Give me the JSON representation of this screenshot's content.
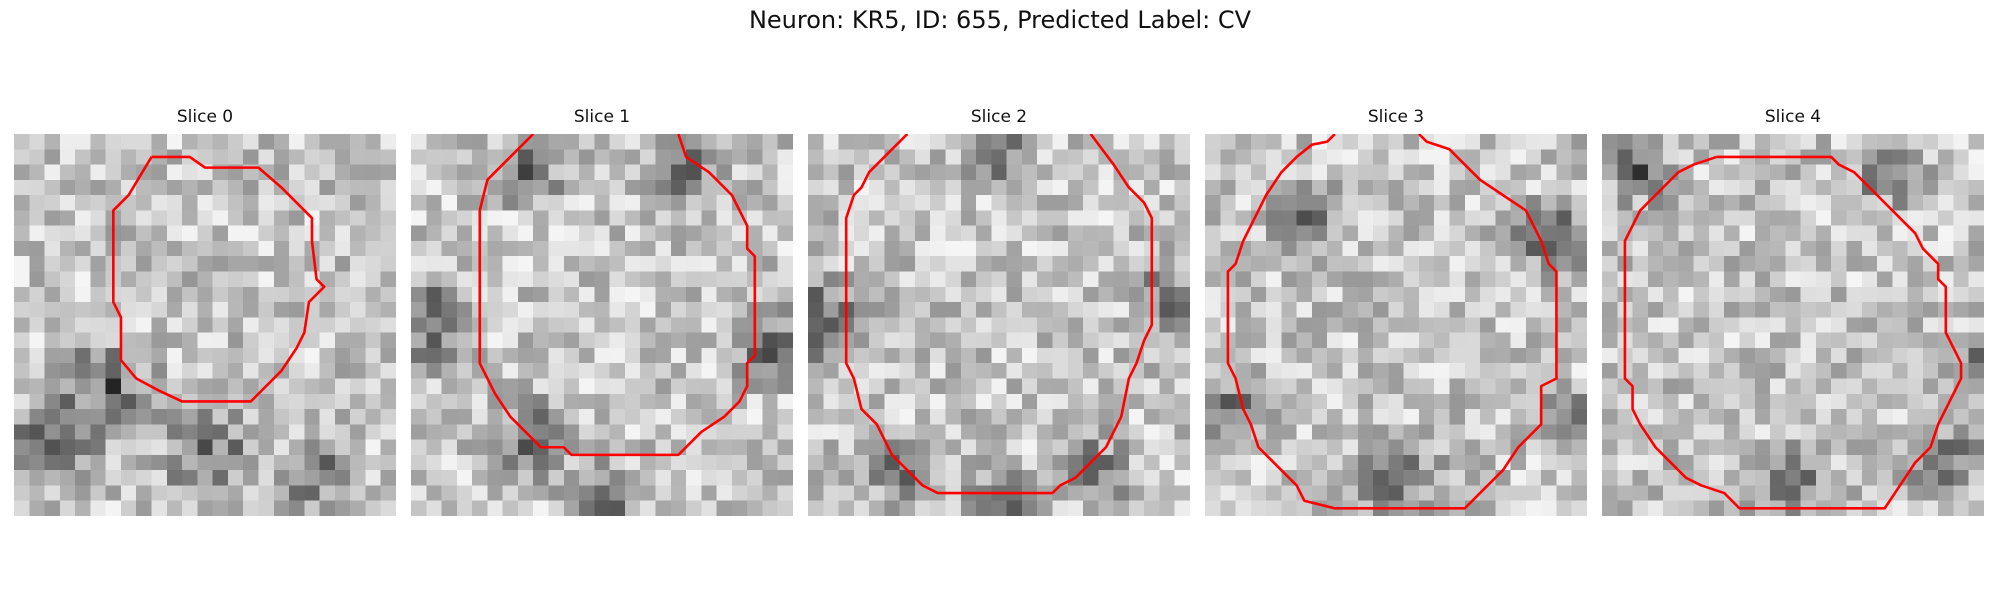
{
  "figure": {
    "title": "Neuron: KR5, ID: 655, Predicted Label: CV",
    "contour_color": "#ff0000",
    "colormap": "grayscale"
  },
  "slices": [
    {
      "title": "Slice 0",
      "grid_cells": 25,
      "dark_regions": [
        [
          0.1,
          0.82,
          0.16
        ],
        [
          0.25,
          0.68,
          0.18
        ],
        [
          0.5,
          0.82,
          0.16
        ],
        [
          0.78,
          0.9,
          0.12
        ]
      ],
      "contour": [
        [
          9,
          1.5
        ],
        [
          11.5,
          1.5
        ],
        [
          12.5,
          2.2
        ],
        [
          16,
          2.2
        ],
        [
          17.5,
          3.5
        ],
        [
          19.5,
          5.5
        ],
        [
          19.5,
          7
        ],
        [
          19.8,
          9.5
        ],
        [
          20.3,
          10
        ],
        [
          19.3,
          11
        ],
        [
          19,
          13
        ],
        [
          18.5,
          14
        ],
        [
          17.5,
          15.5
        ],
        [
          16,
          17
        ],
        [
          15.5,
          17.5
        ],
        [
          11,
          17.5
        ],
        [
          9.5,
          16.8
        ],
        [
          8,
          16
        ],
        [
          7,
          14.8
        ],
        [
          7,
          12
        ],
        [
          6.5,
          11
        ],
        [
          6.5,
          5
        ],
        [
          7.5,
          4
        ],
        [
          9,
          1.5
        ]
      ]
    },
    {
      "title": "Slice 1",
      "grid_cells": 25,
      "dark_regions": [
        [
          0.05,
          0.5,
          0.16
        ],
        [
          0.5,
          0.96,
          0.14
        ],
        [
          0.95,
          0.55,
          0.14
        ],
        [
          0.3,
          0.8,
          0.14
        ],
        [
          0.3,
          0.1,
          0.12
        ],
        [
          0.72,
          0.1,
          0.12
        ]
      ],
      "contour": [
        [
          8,
          0
        ],
        [
          5,
          3
        ],
        [
          4.5,
          5
        ],
        [
          4.5,
          15
        ],
        [
          5,
          16
        ],
        [
          5.5,
          17
        ],
        [
          6.5,
          18.5
        ],
        [
          8,
          20
        ],
        [
          8.5,
          20.5
        ],
        [
          10,
          20.5
        ],
        [
          10.5,
          21
        ],
        [
          17.5,
          21
        ],
        [
          18.5,
          20
        ],
        [
          19,
          19.5
        ],
        [
          20.5,
          18.5
        ],
        [
          21.5,
          17.5
        ],
        [
          22,
          16.5
        ],
        [
          22,
          15
        ],
        [
          22.5,
          14.5
        ],
        [
          22.5,
          8
        ],
        [
          22,
          7.5
        ],
        [
          22,
          6
        ],
        [
          21,
          4
        ],
        [
          19.5,
          2.5
        ],
        [
          18,
          1.5
        ],
        [
          17.5,
          0
        ]
      ]
    },
    {
      "title": "Slice 2",
      "grid_cells": 25,
      "dark_regions": [
        [
          0.03,
          0.5,
          0.18
        ],
        [
          0.95,
          0.45,
          0.14
        ],
        [
          0.5,
          0.96,
          0.14
        ],
        [
          0.25,
          0.88,
          0.12
        ],
        [
          0.75,
          0.88,
          0.12
        ],
        [
          0.5,
          0.05,
          0.12
        ]
      ],
      "contour": [
        [
          6.5,
          0
        ],
        [
          4,
          2.5
        ],
        [
          3.5,
          3.5
        ],
        [
          3,
          4
        ],
        [
          2.5,
          5.5
        ],
        [
          2.5,
          15
        ],
        [
          3,
          16
        ],
        [
          3.5,
          18
        ],
        [
          4.5,
          19
        ],
        [
          5.5,
          21
        ],
        [
          6.5,
          22
        ],
        [
          7.5,
          23
        ],
        [
          8.5,
          23.5
        ],
        [
          16,
          23.5
        ],
        [
          16.5,
          23
        ],
        [
          17.5,
          22.5
        ],
        [
          18.5,
          21.5
        ],
        [
          19.5,
          20.5
        ],
        [
          20,
          19.5
        ],
        [
          20.5,
          18.5
        ],
        [
          21,
          16
        ],
        [
          21.5,
          15
        ],
        [
          22,
          13.5
        ],
        [
          22.5,
          12.5
        ],
        [
          22.5,
          5.5
        ],
        [
          22,
          4.5
        ],
        [
          21,
          3.5
        ],
        [
          20,
          2
        ],
        [
          18.5,
          0
        ]
      ]
    },
    {
      "title": "Slice 3",
      "grid_cells": 25,
      "dark_regions": [
        [
          0.9,
          0.28,
          0.14
        ],
        [
          0.08,
          0.72,
          0.12
        ],
        [
          0.5,
          0.9,
          0.16
        ],
        [
          0.25,
          0.2,
          0.12
        ],
        [
          0.95,
          0.75,
          0.12
        ]
      ],
      "contour": [
        [
          8.5,
          0
        ],
        [
          8,
          0.5
        ],
        [
          7,
          0.7
        ],
        [
          6,
          1.5
        ],
        [
          5,
          2.5
        ],
        [
          4,
          4
        ],
        [
          3.5,
          5
        ],
        [
          3,
          6
        ],
        [
          2.5,
          7
        ],
        [
          2,
          8.5
        ],
        [
          1.5,
          9
        ],
        [
          1.5,
          15
        ],
        [
          2,
          16
        ],
        [
          2.5,
          18
        ],
        [
          3,
          19
        ],
        [
          3.5,
          20.5
        ],
        [
          4.5,
          21.5
        ],
        [
          6,
          23
        ],
        [
          6.5,
          24
        ],
        [
          8.5,
          24.5
        ],
        [
          17,
          24.5
        ],
        [
          17.5,
          24
        ],
        [
          19.5,
          22
        ],
        [
          20.5,
          20.5
        ],
        [
          22,
          19
        ],
        [
          22,
          16.5
        ],
        [
          23,
          16
        ],
        [
          23,
          9
        ],
        [
          22.5,
          8.5
        ],
        [
          22,
          7
        ],
        [
          21.5,
          6
        ],
        [
          21,
          5
        ],
        [
          19.5,
          4
        ],
        [
          18,
          3
        ],
        [
          17,
          2
        ],
        [
          16,
          1
        ],
        [
          14.5,
          0.5
        ],
        [
          14,
          0
        ]
      ]
    },
    {
      "title": "Slice 4",
      "grid_cells": 25,
      "dark_regions": [
        [
          0.5,
          0.92,
          0.14
        ],
        [
          0.9,
          0.85,
          0.14
        ],
        [
          0.95,
          0.6,
          0.1
        ],
        [
          0.1,
          0.1,
          0.12
        ],
        [
          0.75,
          0.1,
          0.12
        ]
      ],
      "contour": [
        [
          7.5,
          1.5
        ],
        [
          15,
          1.5
        ],
        [
          15.5,
          2
        ],
        [
          16.5,
          2.5
        ],
        [
          17.5,
          3.5
        ],
        [
          18.5,
          4.5
        ],
        [
          19.5,
          5.5
        ],
        [
          20.5,
          6.5
        ],
        [
          21,
          7.5
        ],
        [
          22,
          8.5
        ],
        [
          22,
          9.5
        ],
        [
          22.5,
          10
        ],
        [
          22.5,
          13
        ],
        [
          23,
          14
        ],
        [
          23.5,
          15
        ],
        [
          23.5,
          16
        ],
        [
          23,
          17
        ],
        [
          22.5,
          18
        ],
        [
          22,
          19
        ],
        [
          21.5,
          20.5
        ],
        [
          20.5,
          21.5
        ],
        [
          19.5,
          23
        ],
        [
          18.5,
          24.5
        ],
        [
          9,
          24.5
        ],
        [
          8.5,
          24
        ],
        [
          8,
          23.5
        ],
        [
          6.5,
          23
        ],
        [
          5.5,
          22.5
        ],
        [
          4.5,
          21.5
        ],
        [
          3.5,
          20.5
        ],
        [
          2.5,
          19
        ],
        [
          2,
          18
        ],
        [
          2,
          16.5
        ],
        [
          1.5,
          16
        ],
        [
          1.5,
          7
        ],
        [
          2,
          6
        ],
        [
          2.5,
          5
        ],
        [
          3.5,
          4
        ],
        [
          5,
          2.5
        ],
        [
          6,
          2
        ],
        [
          7.5,
          1.5
        ]
      ]
    }
  ]
}
